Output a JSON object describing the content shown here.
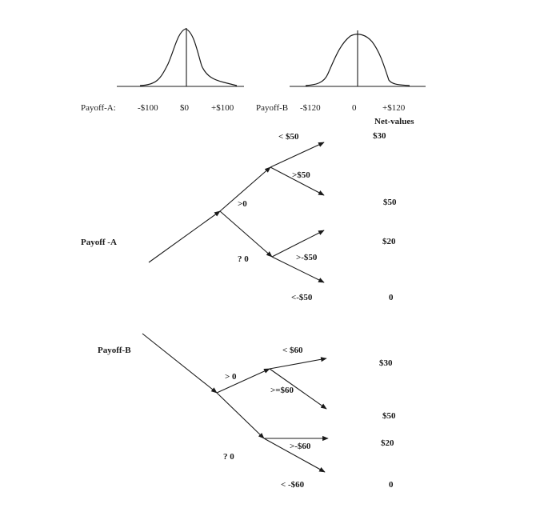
{
  "distributions": {
    "payoff_a": {
      "label": "Payoff-A:",
      "ticks": [
        "-$100",
        "$0",
        "+$100"
      ]
    },
    "payoff_b": {
      "label": "Payoff-B",
      "ticks": [
        "-$120",
        "0",
        "+$120"
      ]
    }
  },
  "net_values_header": "Net-values",
  "tree_a": {
    "root_label": "Payoff -A",
    "upper_branch": ">0",
    "lower_branch": "? 0",
    "upper_outcomes": [
      "< $50",
      ">$50"
    ],
    "lower_outcomes": [
      ">-$50",
      "<-$50"
    ],
    "net_values": [
      "$30",
      "$50",
      "$20",
      "0"
    ]
  },
  "tree_b": {
    "root_label": "Payoff-B",
    "upper_branch": "> 0",
    "lower_branch": "? 0",
    "upper_outcomes": [
      "< $60",
      ">=$60"
    ],
    "lower_outcomes": [
      ">-$60",
      "< -$60"
    ],
    "net_values": [
      "$30",
      "$50",
      "$20",
      "0"
    ]
  }
}
